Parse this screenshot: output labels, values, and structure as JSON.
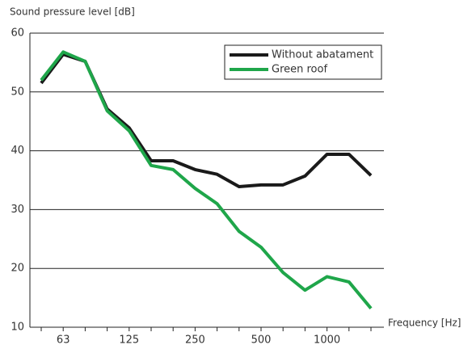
{
  "chart_data": {
    "type": "line",
    "y_label": "Sound pressure level [dB]",
    "x_label": "Frequency [Hz]",
    "categories": [
      null,
      "63",
      null,
      null,
      "125",
      null,
      null,
      "250",
      null,
      null,
      "500",
      null,
      null,
      "1000",
      null,
      null
    ],
    "series": [
      {
        "name": "Without abatament",
        "color": "#1a1a1a",
        "values": [
          51.5,
          56.4,
          55.2,
          47.1,
          43.9,
          38.3,
          38.3,
          36.8,
          36.0,
          33.9,
          34.2,
          34.2,
          35.7,
          39.4,
          39.4,
          35.8
        ]
      },
      {
        "name": "Green roof",
        "color": "#1fa64a",
        "values": [
          52.0,
          56.8,
          55.2,
          46.8,
          43.4,
          37.5,
          36.8,
          33.6,
          31.0,
          26.3,
          23.6,
          19.3,
          16.3,
          18.6,
          17.7,
          13.2
        ]
      }
    ],
    "ylim": [
      10,
      60
    ],
    "yticks": [
      10,
      20,
      30,
      40,
      50,
      60
    ],
    "grid": true,
    "legend": "upper right"
  }
}
